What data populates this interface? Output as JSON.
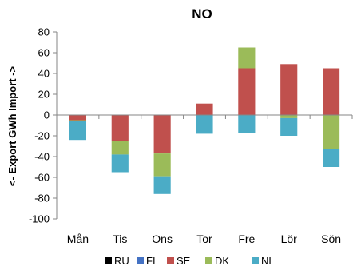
{
  "chart_data": {
    "type": "bar",
    "stacked": true,
    "title": "NO",
    "xlabel": "",
    "ylabel": "<- Export GWh Import ->",
    "ylim": [
      -100,
      80
    ],
    "yticks": [
      -100,
      -80,
      -60,
      -40,
      -20,
      0,
      20,
      40,
      60,
      80
    ],
    "grid": false,
    "legend_position": "bottom",
    "categories": [
      "Mån",
      "Tis",
      "Ons",
      "Tor",
      "Fre",
      "Lör",
      "Sön"
    ],
    "series": [
      {
        "name": "RU",
        "color": "#000000",
        "values": [
          0,
          0,
          0,
          0,
          0,
          0,
          0
        ]
      },
      {
        "name": "FI",
        "color": "#4472C4",
        "values": [
          0,
          0,
          0,
          0,
          0,
          0,
          0
        ]
      },
      {
        "name": "SE",
        "color": "#C0504D",
        "values": [
          -5,
          -25,
          -37,
          11,
          45,
          49,
          45
        ]
      },
      {
        "name": "DK",
        "color": "#9BBB59",
        "values": [
          -1,
          -13,
          -22,
          0,
          20,
          -3,
          -33
        ]
      },
      {
        "name": "NL",
        "color": "#4BACC6",
        "values": [
          -18,
          -17,
          -17,
          -18,
          -17,
          -17,
          -17
        ]
      }
    ]
  }
}
